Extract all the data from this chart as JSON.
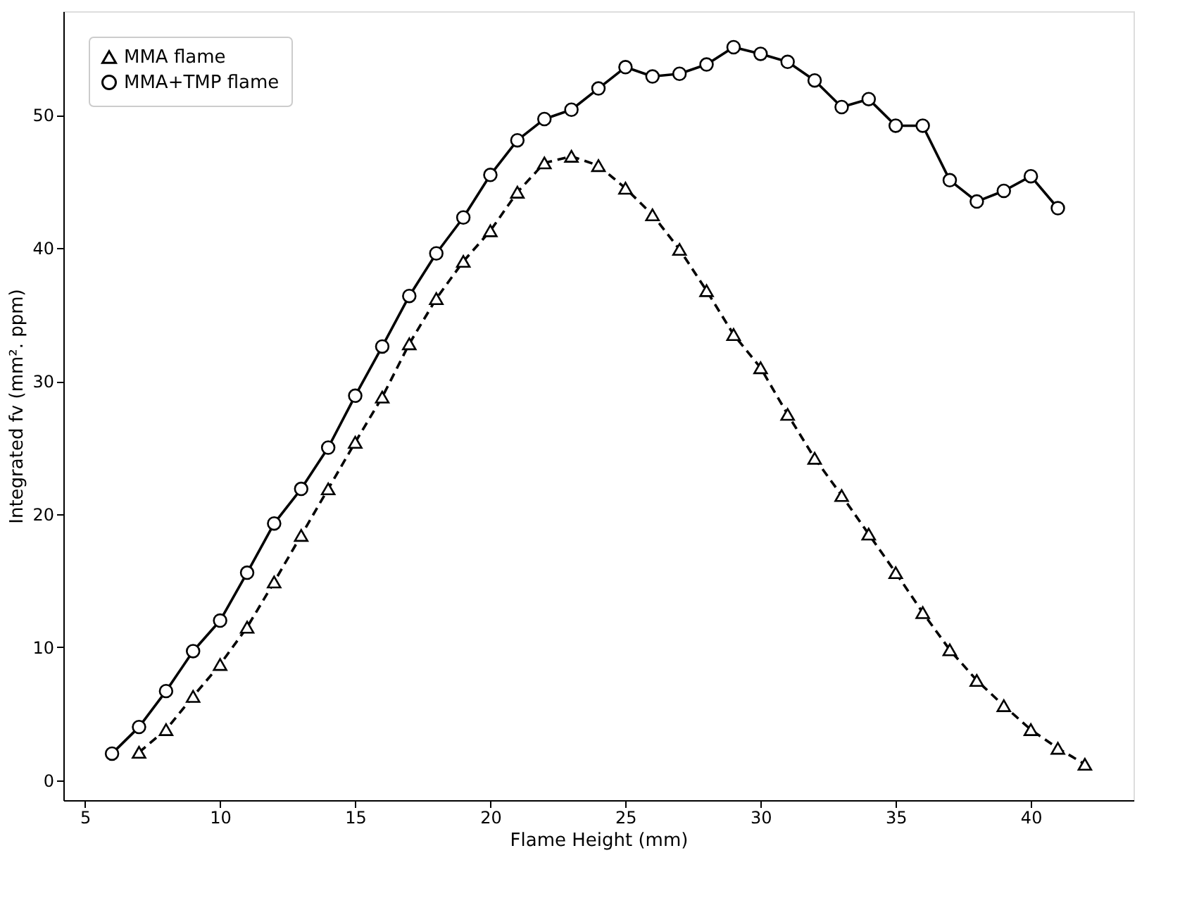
{
  "chart_data": {
    "type": "line",
    "xlabel": "Flame Height (mm)",
    "ylabel": "Integrated fv (mm². ppm)",
    "xlim": [
      4.2,
      43.8
    ],
    "xticks": [
      5,
      10,
      15,
      20,
      25,
      30,
      35,
      40
    ],
    "ylim": [
      -1.5,
      57.8
    ],
    "yticks": [
      0,
      10,
      20,
      30,
      40,
      50
    ],
    "grid": false,
    "legend": "top left",
    "series": [
      {
        "name": "MMA flame",
        "color": "#000000",
        "marker": "triangle",
        "line_style": "dashed",
        "x": [
          7,
          8,
          9,
          10,
          11,
          12,
          13,
          14,
          15,
          16,
          17,
          18,
          19,
          20,
          21,
          22,
          23,
          24,
          25,
          26,
          27,
          28,
          29,
          30,
          31,
          32,
          33,
          34,
          35,
          36,
          37,
          38,
          39,
          40,
          41,
          42
        ],
        "values": [
          2.1,
          3.8,
          6.3,
          8.7,
          11.5,
          14.9,
          18.4,
          21.9,
          25.4,
          28.8,
          32.8,
          36.2,
          39.0,
          41.3,
          44.2,
          46.4,
          46.9,
          46.2,
          44.5,
          42.5,
          39.9,
          36.8,
          33.5,
          31.0,
          27.5,
          24.2,
          21.4,
          18.5,
          15.6,
          12.6,
          9.8,
          7.5,
          5.6,
          3.8,
          2.4,
          1.2
        ]
      },
      {
        "name": "MMA+TMP flame",
        "color": "#000000",
        "marker": "circle",
        "line_style": "solid",
        "x": [
          6,
          7,
          8,
          9,
          10,
          11,
          12,
          13,
          14,
          15,
          16,
          17,
          18,
          19,
          20,
          21,
          22,
          23,
          24,
          25,
          26,
          27,
          28,
          29,
          30,
          31,
          32,
          33,
          34,
          35,
          36,
          37,
          38,
          39,
          40,
          41
        ],
        "values": [
          2.0,
          4.0,
          6.7,
          9.7,
          12.0,
          15.6,
          19.3,
          21.9,
          25.0,
          28.9,
          32.6,
          36.4,
          39.6,
          42.3,
          45.5,
          48.1,
          49.7,
          50.4,
          52.0,
          53.6,
          52.9,
          53.1,
          53.8,
          55.1,
          54.6,
          54.0,
          52.6,
          50.6,
          51.2,
          49.2,
          49.2,
          45.1,
          43.5,
          44.3,
          45.4,
          43.0
        ]
      }
    ]
  }
}
